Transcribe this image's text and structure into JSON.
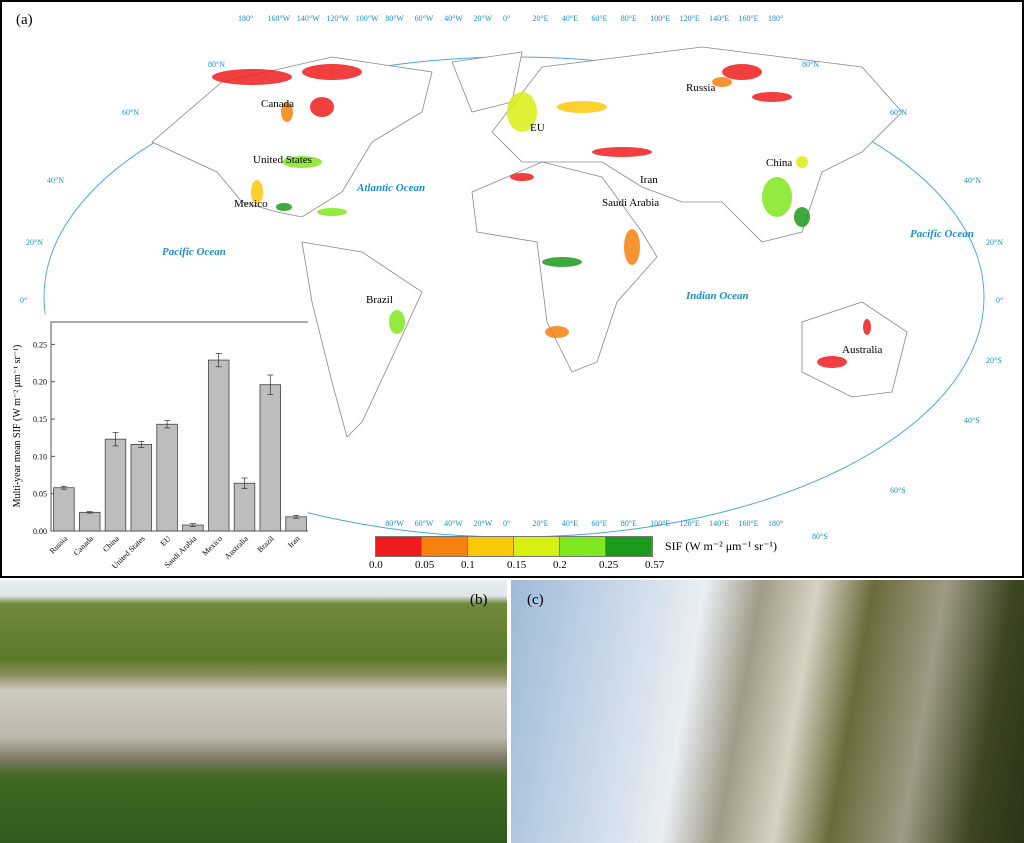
{
  "panel_a": {
    "label": "(a)",
    "longitude_labels": [
      "180°",
      "160°W",
      "140°W",
      "120°W",
      "100°W",
      "80°W",
      "60°W",
      "40°W",
      "20°W",
      "0°",
      "20°E",
      "40°E",
      "60°E",
      "80°E",
      "100°E",
      "120°E",
      "140°E",
      "160°E",
      "180°"
    ],
    "latitude_labels_left": [
      "80°N",
      "60°N",
      "40°N",
      "20°N",
      "0°"
    ],
    "latitude_labels_right": [
      "80°N",
      "60°N",
      "40°N",
      "20°N",
      "0°",
      "20°S",
      "40°S",
      "60°S",
      "80°S"
    ],
    "oceans": [
      "Atlantic Ocean",
      "Pacific Ocean",
      "Indian Ocean",
      "Pacific Ocean"
    ],
    "countries": [
      "Canada",
      "United States",
      "Mexico",
      "Brazil",
      "EU",
      "Russia",
      "Iran",
      "Saudi Arabia",
      "China",
      "Australia"
    ],
    "legend": {
      "title": "SIF (W m⁻² μm⁻¹ sr⁻¹)",
      "ticks": [
        "0.0",
        "0.05",
        "0.1",
        "0.15",
        "0.2",
        "0.25",
        "0.57"
      ],
      "colors": [
        "#ee1c1c",
        "#f7800e",
        "#fbc90a",
        "#d8ef12",
        "#80e81e",
        "#1c9a1c"
      ]
    }
  },
  "chart_data": {
    "type": "bar",
    "title": "",
    "xlabel": "",
    "ylabel": "Multi-year mean SIF (W m⁻² μm⁻¹ sr⁻¹)",
    "ylim": [
      0,
      0.28
    ],
    "yticks": [
      "0.00",
      "0.05",
      "0.10",
      "0.15",
      "0.20",
      "0.25"
    ],
    "categories": [
      "Russia",
      "Canada",
      "China",
      "United States",
      "EU",
      "Saudi Arabia",
      "Mexico",
      "Australia",
      "Brazil",
      "Iran"
    ],
    "values": [
      0.058,
      0.025,
      0.123,
      0.116,
      0.143,
      0.008,
      0.229,
      0.064,
      0.196,
      0.019
    ],
    "errors": [
      0.002,
      0.001,
      0.009,
      0.004,
      0.005,
      0.002,
      0.009,
      0.007,
      0.013,
      0.002
    ],
    "bar_color": "#bdbdbd"
  },
  "panel_b": {
    "label": "(b)"
  },
  "panel_c": {
    "label": "(c)"
  }
}
